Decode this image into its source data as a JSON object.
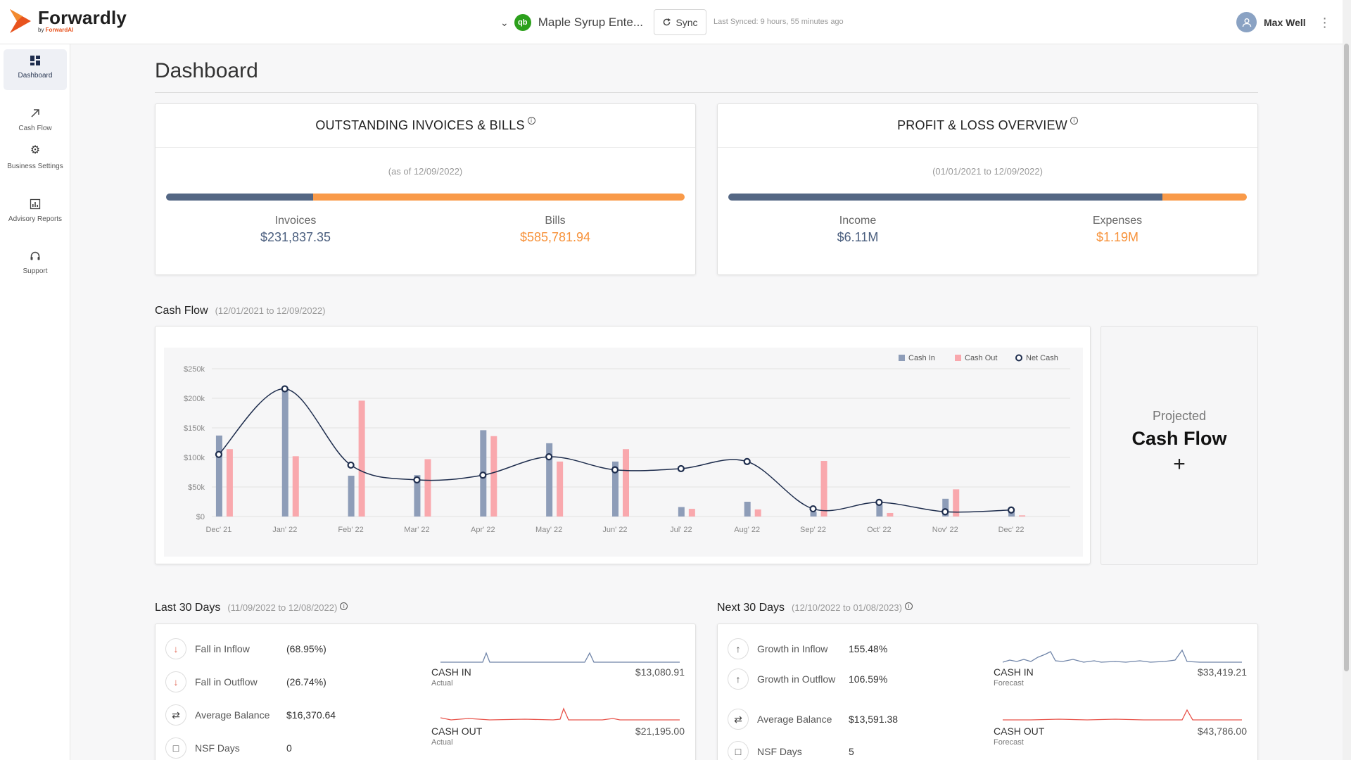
{
  "header": {
    "brand": "Forwardly",
    "brand_sub_prefix": "by ",
    "brand_sub_accent": "ForwardAI",
    "company": "Maple Syrup Ente...",
    "qb_badge": "qb",
    "sync_label": "Sync",
    "last_synced": "Last Synced: 9 hours, 55 minutes ago",
    "user": "Max Well"
  },
  "sidebar": {
    "items": [
      {
        "label": "Dashboard",
        "icon": "dashboard-icon"
      },
      {
        "label": "Cash Flow",
        "icon": "arrow-up-right-icon"
      },
      {
        "label": "Business Settings",
        "icon": "gear-icon"
      },
      {
        "label": "Advisory Reports",
        "icon": "report-icon"
      },
      {
        "label": "Support",
        "icon": "headset-icon"
      }
    ]
  },
  "page": {
    "title": "Dashboard"
  },
  "outstanding": {
    "title": "OUTSTANDING INVOICES & BILLS",
    "as_of": "(as of 12/09/2022)",
    "invoices_label": "Invoices",
    "invoices_value": "$231,837.35",
    "bills_label": "Bills",
    "bills_value": "$585,781.94",
    "invoices_share": 0.284
  },
  "pnl": {
    "title": "PROFIT & LOSS OVERVIEW",
    "range": "(01/01/2021 to 12/09/2022)",
    "income_label": "Income",
    "income_value": "$6.11M",
    "expenses_label": "Expenses",
    "expenses_value": "$1.19M",
    "income_share": 0.837
  },
  "cashflow": {
    "title": "Cash Flow",
    "range": "(12/01/2021 to 12/09/2022)"
  },
  "chart_data": {
    "type": "bar",
    "title": "Cash Flow",
    "categories": [
      "Dec' 21",
      "Jan' 22",
      "Feb' 22",
      "Mar' 22",
      "Apr' 22",
      "May' 22",
      "Jun' 22",
      "Jul' 22",
      "Aug' 22",
      "Sep' 22",
      "Oct' 22",
      "Nov' 22",
      "Dec' 22"
    ],
    "series": [
      {
        "name": "Cash In",
        "type": "bar",
        "color": "#8e9db8",
        "values": [
          137000,
          217000,
          69000,
          70000,
          146000,
          124000,
          93000,
          16000,
          25000,
          8000,
          20000,
          30000,
          10000
        ]
      },
      {
        "name": "Cash Out",
        "type": "bar",
        "color": "#f9a8ad",
        "values": [
          114000,
          102000,
          196000,
          97000,
          136000,
          93000,
          114000,
          13000,
          12000,
          94000,
          6000,
          46000,
          2000
        ]
      },
      {
        "name": "Net Cash",
        "type": "line",
        "color": "#1e2d4d",
        "values": [
          105000,
          216000,
          87000,
          62000,
          70000,
          101000,
          79000,
          81000,
          93000,
          13000,
          24000,
          8000,
          11000
        ]
      }
    ],
    "yticks": [
      "$0",
      "$50k",
      "$100k",
      "$150k",
      "$200k",
      "$250k"
    ],
    "ylim": [
      0,
      250000
    ],
    "legend": "top-right"
  },
  "projected": {
    "line1": "Projected",
    "line2": "Cash Flow",
    "plus": "+"
  },
  "last30": {
    "title": "Last 30 Days",
    "range": "(11/09/2022 to 12/08/2022)",
    "metrics": [
      {
        "label": "Fall in Inflow",
        "value": "(68.95%)",
        "icon": "arrow-down-icon"
      },
      {
        "label": "Fall in Outflow",
        "value": "(26.74%)",
        "icon": "arrow-down-icon"
      },
      {
        "label": "Average Balance",
        "value": "$16,370.64",
        "icon": "transfer-icon"
      },
      {
        "label": "NSF Days",
        "value": "0",
        "icon": "calendar-icon"
      }
    ],
    "cash_in": {
      "label": "CASH IN",
      "sub": "Actual",
      "amount": "$13,080.91"
    },
    "cash_out": {
      "label": "CASH OUT",
      "sub": "Actual",
      "amount": "$21,195.00"
    }
  },
  "next30": {
    "title": "Next 30 Days",
    "range": "(12/10/2022 to 01/08/2023)",
    "metrics": [
      {
        "label": "Growth in Inflow",
        "value": "155.48%",
        "icon": "arrow-up-icon"
      },
      {
        "label": "Growth in Outflow",
        "value": "106.59%",
        "icon": "arrow-up-icon"
      },
      {
        "label": "Average Balance",
        "value": "$13,591.38",
        "icon": "transfer-icon"
      },
      {
        "label": "NSF Days",
        "value": "5",
        "icon": "calendar-icon"
      }
    ],
    "cash_in": {
      "label": "CASH IN",
      "sub": "Forecast",
      "amount": "$33,419.21"
    },
    "cash_out": {
      "label": "CASH OUT",
      "sub": "Forecast",
      "amount": "$43,786.00"
    }
  }
}
